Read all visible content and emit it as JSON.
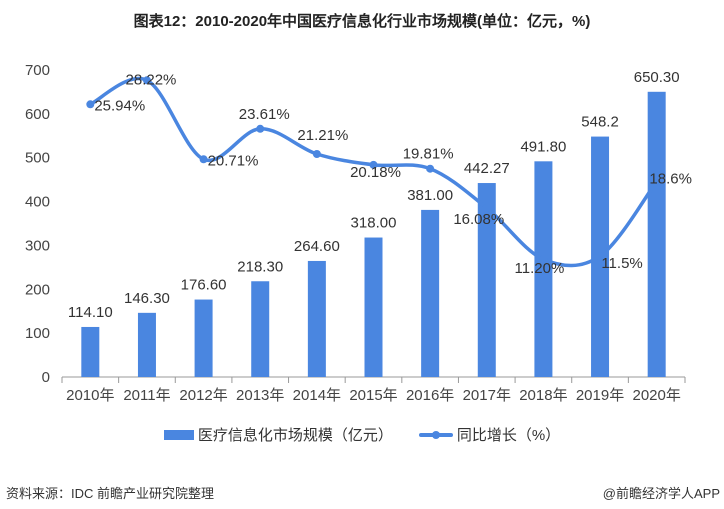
{
  "title": "图表12：2010-2020年中国医疗信息化行业市场规模(单位：亿元，%)",
  "chart_data": {
    "type": "bar+line",
    "categories": [
      "2010年",
      "2011年",
      "2012年",
      "2013年",
      "2014年",
      "2015年",
      "2016年",
      "2017年",
      "2018年",
      "2019年",
      "2020年"
    ],
    "series": [
      {
        "name": "医疗信息化市场规模（亿元）",
        "type": "bar",
        "values": [
          114.1,
          146.3,
          176.6,
          218.3,
          264.6,
          318.0,
          381.0,
          442.27,
          491.8,
          548.2,
          650.3
        ],
        "labels": [
          "114.10",
          "146.30",
          "176.60",
          "218.30",
          "264.60",
          "318.00",
          "381.00",
          "442.27",
          "491.80",
          "548.2",
          "650.30"
        ]
      },
      {
        "name": "同比增长（%）",
        "type": "line",
        "axis": "secondary-hidden",
        "values": [
          25.94,
          28.22,
          20.71,
          23.61,
          21.21,
          20.18,
          19.81,
          16.08,
          11.2,
          11.5,
          18.6
        ],
        "labels": [
          "25.94%",
          "28.22%",
          "20.71%",
          "23.61%",
          "21.21%",
          "20.18%",
          "19.81%",
          "16.08%",
          "11.20%",
          "11.5%",
          "18.6%"
        ]
      }
    ],
    "ylim": [
      0,
      700
    ],
    "yticks": [
      "0",
      "100",
      "200",
      "300",
      "400",
      "500",
      "600",
      "700"
    ],
    "y2lim": [
      0,
      29.2
    ],
    "grid": false,
    "legend": "bottom",
    "colors": {
      "bar": "#4a86e0",
      "line": "#4a86e0"
    }
  },
  "legend": {
    "bar": "医疗信息化市场规模（亿元）",
    "line": "同比增长（%）"
  },
  "source": "资料来源：IDC 前瞻产业研究院整理",
  "credit": "@前瞻经济学人APP"
}
